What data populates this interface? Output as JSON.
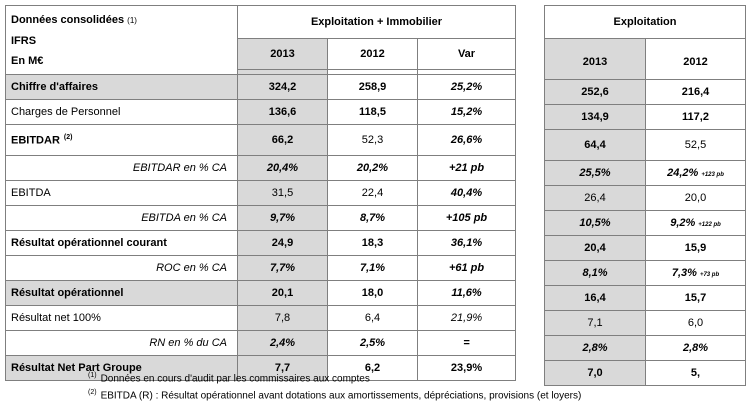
{
  "header": {
    "title": "Données consolidées",
    "title_note": "(1)",
    "ifrs": "IFRS",
    "unit": "En M€",
    "group_main": "Exploitation + Immobilier",
    "group_side": "Exploitation",
    "cols_main": [
      "2013",
      "2012",
      "Var"
    ],
    "cols_side": [
      "2013",
      "2012"
    ]
  },
  "rows": [
    {
      "label": "Chiffre d'affaires",
      "note": "",
      "v2013": "324,2",
      "v2012": "258,9",
      "var": "25,2%",
      "e2013": "252,6",
      "e2012": "216,4",
      "e2012_note": ""
    },
    {
      "label": "Charges de Personnel",
      "note": "",
      "v2013": "136,6",
      "v2012": "118,5",
      "var": "15,2%",
      "e2013": "134,9",
      "e2012": "117,2",
      "e2012_note": ""
    },
    {
      "label": "EBITDAR",
      "note": "(2)",
      "v2013": "66,2",
      "v2012": "52,3",
      "var": "26,6%",
      "e2013": "64,4",
      "e2012": "52,5",
      "e2012_note": ""
    },
    {
      "label": "EBITDAR en % CA",
      "note": "",
      "v2013": "20,4%",
      "v2012": "20,2%",
      "var": "+21 pb",
      "e2013": "25,5%",
      "e2012": "24,2%",
      "e2012_note": "+123 pb"
    },
    {
      "label": "EBITDA",
      "note": "",
      "v2013": "31,5",
      "v2012": "22,4",
      "var": "40,4%",
      "e2013": "26,4",
      "e2012": "20,0",
      "e2012_note": ""
    },
    {
      "label": "EBITDA en % CA",
      "note": "",
      "v2013": "9,7%",
      "v2012": "8,7%",
      "var": "+105 pb",
      "e2013": "10,5%",
      "e2012": "9,2%",
      "e2012_note": "+122 pb"
    },
    {
      "label": "Résultat opérationnel courant",
      "note": "",
      "v2013": "24,9",
      "v2012": "18,3",
      "var": "36,1%",
      "e2013": "20,4",
      "e2012": "15,9",
      "e2012_note": ""
    },
    {
      "label": "ROC en % CA",
      "note": "",
      "v2013": "7,7%",
      "v2012": "7,1%",
      "var": "+61 pb",
      "e2013": "8,1%",
      "e2012": "7,3%",
      "e2012_note": "+73 pb"
    },
    {
      "label": "Résultat opérationnel",
      "note": "",
      "v2013": "20,1",
      "v2012": "18,0",
      "var": "11,6%",
      "e2013": "16,4",
      "e2012": "15,7",
      "e2012_note": ""
    },
    {
      "label": "Résultat net 100%",
      "note": "",
      "v2013": "7,8",
      "v2012": "6,4",
      "var": "21,9%",
      "e2013": "7,1",
      "e2012": "6,0",
      "e2012_note": ""
    },
    {
      "label": "RN en % du CA",
      "note": "",
      "v2013": "2,4%",
      "v2012": "2,5%",
      "var": "=",
      "e2013": "2,8%",
      "e2012": "2,8%",
      "e2012_note": ""
    },
    {
      "label": "Résultat Net Part Groupe",
      "note": "",
      "v2013": "7,7",
      "v2012": "6,2",
      "var": "23,9%",
      "e2013": "7,0",
      "e2012": "5,",
      "e2012_note": ""
    }
  ],
  "footnotes": [
    {
      "marker": "(1)",
      "text": "Données en cours d'audit par les commissaires aux comptes"
    },
    {
      "marker": "(2)",
      "text": "EBITDA (R) : Résultat opérationnel avant dotations aux amortissements, dépréciations, provisions (et loyers)"
    }
  ]
}
